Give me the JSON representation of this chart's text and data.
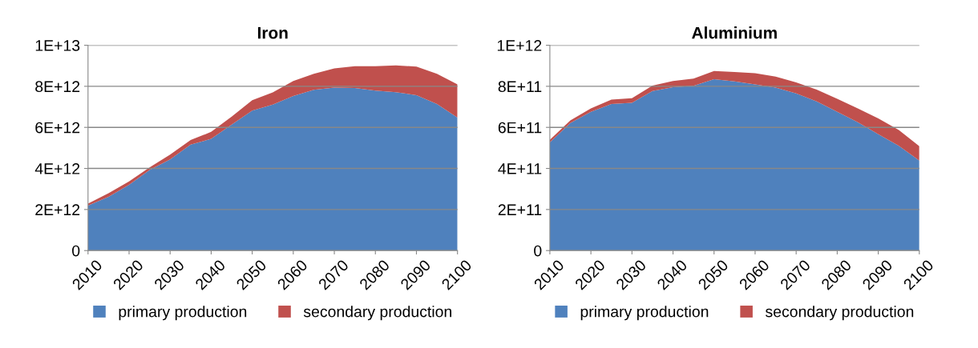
{
  "chart_data": [
    {
      "type": "area",
      "stacked": true,
      "title": "Iron",
      "x": [
        2010,
        2015,
        2020,
        2025,
        2030,
        2035,
        2040,
        2045,
        2050,
        2055,
        2060,
        2065,
        2070,
        2075,
        2080,
        2085,
        2090,
        2095,
        2100
      ],
      "series": [
        {
          "name": "primary production",
          "color": "#4f81bd",
          "values": [
            2190000000000.0,
            2620000000000.0,
            3200000000000.0,
            3920000000000.0,
            4440000000000.0,
            5160000000000.0,
            5440000000000.0,
            6130000000000.0,
            6820000000000.0,
            7110000000000.0,
            7530000000000.0,
            7830000000000.0,
            7940000000000.0,
            7920000000000.0,
            7790000000000.0,
            7710000000000.0,
            7570000000000.0,
            7140000000000.0,
            6480000000000.0
          ]
        },
        {
          "name": "secondary production",
          "color": "#c0504d",
          "values": [
            100000000000.0,
            170000000000.0,
            170000000000.0,
            130000000000.0,
            230000000000.0,
            220000000000.0,
            340000000000.0,
            390000000000.0,
            500000000000.0,
            590000000000.0,
            730000000000.0,
            780000000000.0,
            930000000000.0,
            1060000000000.0,
            1190000000000.0,
            1310000000000.0,
            1390000000000.0,
            1470000000000.0,
            1610000000000.0
          ]
        }
      ],
      "xlim": [
        2010,
        2100
      ],
      "xticks": [
        2010,
        2020,
        2030,
        2040,
        2050,
        2060,
        2070,
        2080,
        2090,
        2100
      ],
      "ylim": [
        0,
        10000000000000.0
      ],
      "yticks": [
        0,
        {
          "value": 2000000000000.0,
          "label": "2E+12"
        },
        {
          "value": 4000000000000.0,
          "label": "4E+12"
        },
        {
          "value": 6000000000000.0,
          "label": "6E+12"
        },
        {
          "value": 8000000000000.0,
          "label": "8E+12"
        },
        {
          "value": 10000000000000.0,
          "label": "1E+13"
        }
      ],
      "grid": "y",
      "legend": "bottom"
    },
    {
      "type": "area",
      "stacked": true,
      "title": "Aluminium",
      "x": [
        2010,
        2015,
        2020,
        2025,
        2030,
        2035,
        2040,
        2045,
        2050,
        2055,
        2060,
        2065,
        2070,
        2075,
        2080,
        2085,
        2090,
        2095,
        2100
      ],
      "series": [
        {
          "name": "primary production",
          "color": "#4f81bd",
          "values": [
            527000000000.0,
            621000000000.0,
            676000000000.0,
            714000000000.0,
            720000000000.0,
            777000000000.0,
            796000000000.0,
            802000000000.0,
            835000000000.0,
            824000000000.0,
            809000000000.0,
            794000000000.0,
            765000000000.0,
            726000000000.0,
            676000000000.0,
            625000000000.0,
            567000000000.0,
            510000000000.0,
            438000000000.0
          ]
        },
        {
          "name": "secondary production",
          "color": "#c0504d",
          "values": [
            12000000000.0,
            13000000000.0,
            16000000000.0,
            21000000000.0,
            22000000000.0,
            26000000000.0,
            30000000000.0,
            36000000000.0,
            40000000000.0,
            46000000000.0,
            55000000000.0,
            53000000000.0,
            54000000000.0,
            58000000000.0,
            63000000000.0,
            67000000000.0,
            77000000000.0,
            77000000000.0,
            70000000000.0
          ]
        }
      ],
      "xlim": [
        2010,
        2100
      ],
      "xticks": [
        2010,
        2020,
        2030,
        2040,
        2050,
        2060,
        2070,
        2080,
        2090,
        2100
      ],
      "ylim": [
        0,
        1000000000000.0
      ],
      "yticks": [
        0,
        {
          "value": 200000000000.0,
          "label": "2E+11"
        },
        {
          "value": 400000000000.0,
          "label": "4E+11"
        },
        {
          "value": 600000000000.0,
          "label": "6E+11"
        },
        {
          "value": 800000000000.0,
          "label": "8E+11"
        },
        {
          "value": 1000000000000.0,
          "label": "1E+12"
        }
      ],
      "grid": "y",
      "legend": "bottom"
    }
  ]
}
